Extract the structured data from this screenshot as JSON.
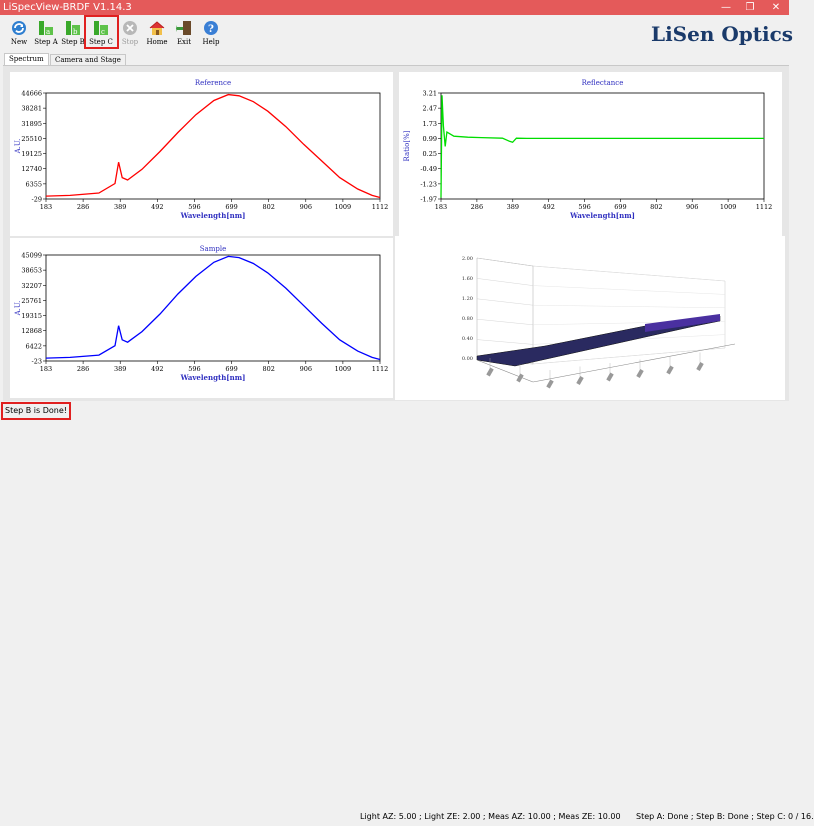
{
  "window": {
    "title": "LiSpecView-BRDF V1.14.3",
    "minimize": "—",
    "maximize": "❐",
    "close": "✕"
  },
  "toolbar": {
    "new": "New",
    "step_a": "Step A",
    "step_b": "Step B",
    "step_c": "Step C",
    "stop": "Stop",
    "home": "Home",
    "exit": "Exit",
    "help": "Help"
  },
  "logo": {
    "text": "LiSen Optics"
  },
  "tabs": {
    "spectrum": "Spectrum",
    "camera_stage": "Camera and Stage"
  },
  "colors": {
    "title_bar": "#e45a5a",
    "reference": "#ff0000",
    "reflectance": "#00dd00",
    "sample": "#0000ff",
    "highlight": "#e02020"
  },
  "charts": {
    "reference": {
      "title": "Reference",
      "xlabel": "Wavelength[nm]",
      "ylabel": "A.U.",
      "xticks": [
        "183",
        "286",
        "389",
        "492",
        "596",
        "699",
        "802",
        "906",
        "1009",
        "1112"
      ],
      "yticks": [
        "44666",
        "38281",
        "31895",
        "25510",
        "19125",
        "12740",
        "6355",
        "-29"
      ]
    },
    "reflectance": {
      "title": "Reflectance",
      "xlabel": "Wavelength[nm]",
      "ylabel": "Ratio[%]",
      "xticks": [
        "183",
        "286",
        "389",
        "492",
        "596",
        "699",
        "802",
        "906",
        "1009",
        "1112"
      ],
      "yticks": [
        "3.21",
        "2.47",
        "1.73",
        "0.99",
        "0.25",
        "-0.49",
        "-1.23",
        "-1.97"
      ]
    },
    "sample": {
      "title": "Sample",
      "xlabel": "Wavelength[nm]",
      "ylabel": "A.U.",
      "xticks": [
        "183",
        "286",
        "389",
        "492",
        "596",
        "699",
        "802",
        "906",
        "1009",
        "1112"
      ],
      "yticks": [
        "45099",
        "38653",
        "32207",
        "25761",
        "19315",
        "12868",
        "6422",
        "-23"
      ]
    },
    "brdf3d": {
      "zticks": [
        "2.00",
        "1.60",
        "1.20",
        "0.80",
        "0.40",
        "0.00"
      ]
    }
  },
  "chart_data": [
    {
      "type": "line",
      "title": "Reference",
      "xlabel": "Wavelength[nm]",
      "ylabel": "A.U.",
      "xlim": [
        183,
        1112
      ],
      "ylim": [
        -29,
        44666
      ],
      "series": [
        {
          "name": "Reference",
          "x": [
            183,
            250,
            330,
            375,
            385,
            395,
            410,
            450,
            500,
            550,
            600,
            650,
            690,
            720,
            760,
            800,
            850,
            900,
            950,
            1000,
            1050,
            1090,
            1112
          ],
          "y": [
            1200,
            1500,
            2500,
            6500,
            15500,
            9000,
            8000,
            12500,
            20000,
            28000,
            35500,
            41500,
            44000,
            43500,
            41000,
            37000,
            30500,
            23000,
            16000,
            9000,
            4200,
            1500,
            600
          ]
        }
      ]
    },
    {
      "type": "line",
      "title": "Reflectance",
      "xlabel": "Wavelength[nm]",
      "ylabel": "Ratio[%]",
      "xlim": [
        183,
        1112
      ],
      "ylim": [
        -1.97,
        3.21
      ],
      "series": [
        {
          "name": "Reflectance",
          "x": [
            183,
            186,
            190,
            195,
            200,
            220,
            260,
            300,
            360,
            380,
            389,
            400,
            430,
            500,
            600,
            700,
            800,
            900,
            1000,
            1112
          ],
          "y": [
            -1.9,
            3.1,
            1.6,
            0.6,
            1.3,
            1.1,
            1.05,
            1.03,
            1.0,
            0.85,
            0.8,
            1.0,
            0.99,
            0.99,
            0.99,
            0.99,
            0.99,
            0.99,
            0.99,
            0.99
          ]
        }
      ]
    },
    {
      "type": "line",
      "title": "Sample",
      "xlabel": "Wavelength[nm]",
      "ylabel": "A.U.",
      "xlim": [
        183,
        1112
      ],
      "ylim": [
        -23,
        45099
      ],
      "series": [
        {
          "name": "Sample",
          "x": [
            183,
            250,
            330,
            375,
            385,
            395,
            410,
            450,
            500,
            550,
            600,
            650,
            690,
            720,
            760,
            800,
            850,
            900,
            950,
            1000,
            1050,
            1090,
            1112
          ],
          "y": [
            1200,
            1500,
            2500,
            6500,
            15000,
            9000,
            8000,
            12500,
            20000,
            28500,
            36000,
            42000,
            44500,
            44000,
            41500,
            37500,
            31000,
            23500,
            16000,
            9000,
            4200,
            1500,
            600
          ]
        }
      ]
    }
  ],
  "status": {
    "left": "Step B is Done!",
    "middle": "Light AZ: 5.00 ; Light ZE: 2.00 ; Meas AZ: 10.00 ; Meas ZE: 10.00",
    "right": "Step A: Done ; Step B: Done ; Step C: 0 / 16."
  }
}
